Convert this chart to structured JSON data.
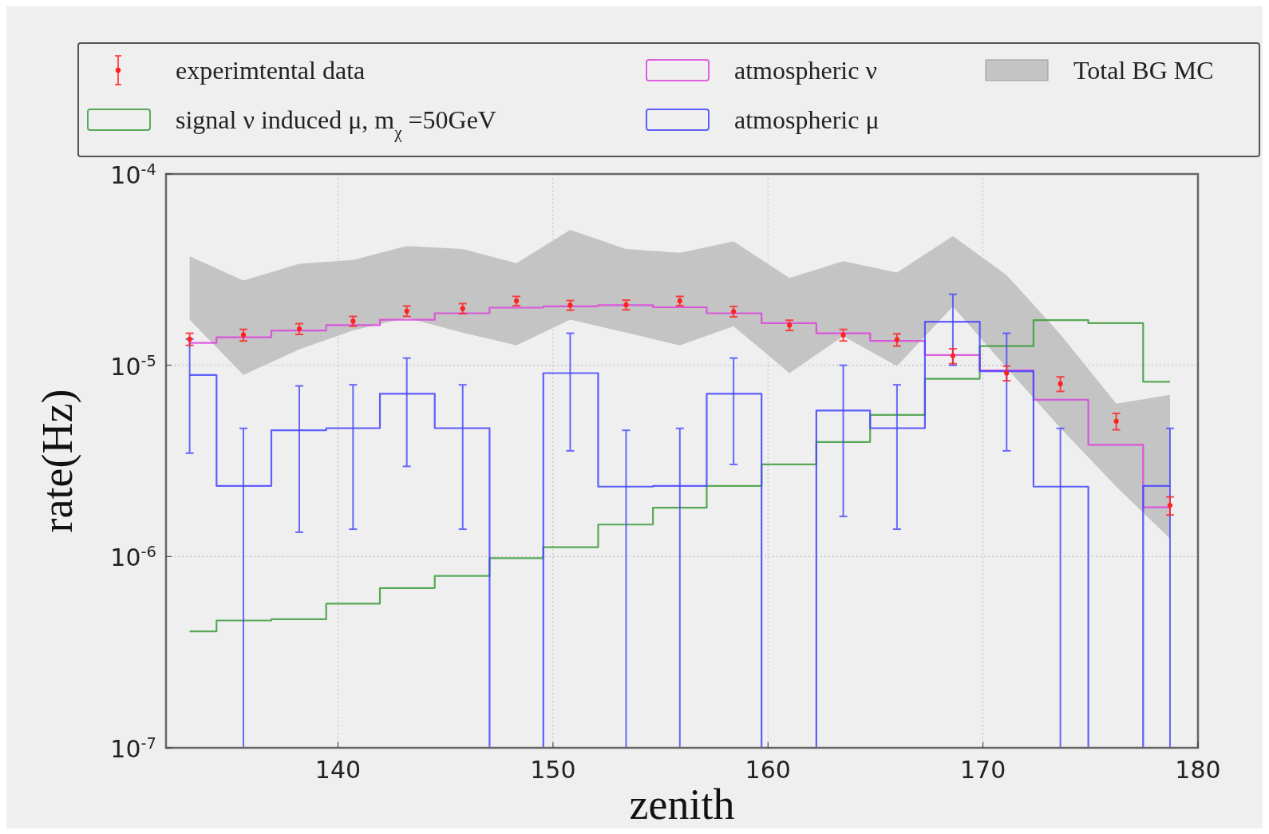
{
  "chart_data": {
    "type": "step",
    "xlabel": "zenith",
    "ylabel": "rate(Hz)",
    "log": "y",
    "grid": true,
    "legend": "top",
    "xlim": [
      132,
      180
    ],
    "xticks": [
      140,
      150,
      160,
      170,
      180
    ],
    "ylim": [
      1e-07,
      0.0001
    ],
    "yticks": [
      {
        "value": 1e-07,
        "label": "10$^{-7}$"
      },
      {
        "value": 1e-06,
        "label": "10$^{-6}$"
      },
      {
        "value": 1e-05,
        "label": "10$^{-5}$"
      },
      {
        "value": 0.0001,
        "label": "10$^{-4}$"
      }
    ],
    "x": [
      133.1,
      135.6,
      138.2,
      140.7,
      143.2,
      145.8,
      148.3,
      150.8,
      153.4,
      155.9,
      158.4,
      161.0,
      163.5,
      166.0,
      168.6,
      171.1,
      173.6,
      176.2,
      178.7
    ],
    "series": [
      {
        "name": "experimtental data",
        "type": "scatter",
        "marker": "circle",
        "color": "#ff2020",
        "values": [
          1.37e-05,
          1.44e-05,
          1.55e-05,
          1.7e-05,
          1.92e-05,
          1.98e-05,
          2.17e-05,
          2.06e-05,
          2.07e-05,
          2.17e-05,
          1.91e-05,
          1.62e-05,
          1.44e-05,
          1.36e-05,
          1.12e-05,
          9.1e-06,
          8e-06,
          5.1e-06,
          1.85e-06
        ],
        "errors": [
          1e-06,
          1e-06,
          1e-06,
          1e-06,
          1.2e-06,
          1.2e-06,
          1.2e-06,
          1.2e-06,
          1.2e-06,
          1.2e-06,
          1.2e-06,
          1e-06,
          1e-06,
          1e-06,
          1e-06,
          8e-07,
          7e-07,
          5e-07,
          2e-07
        ]
      },
      {
        "name": "signal ν induced μ, m$_{χ}$ =50GeV",
        "color": "#3c9c3c",
        "values": [
          4.06e-07,
          4.63e-07,
          4.7e-07,
          5.67e-07,
          6.84e-07,
          7.92e-07,
          9.8e-07,
          1.12e-06,
          1.47e-06,
          1.8e-06,
          2.34e-06,
          3.03e-06,
          3.97e-06,
          5.5e-06,
          8.5e-06,
          1.26e-05,
          1.72e-05,
          1.66e-05,
          8.2e-06
        ]
      },
      {
        "name": "atmospheric ν",
        "color": "#dd44dd",
        "values": [
          1.31e-05,
          1.4e-05,
          1.52e-05,
          1.62e-05,
          1.73e-05,
          1.87e-05,
          2e-05,
          2.03e-05,
          2.06e-05,
          2.01e-05,
          1.87e-05,
          1.66e-05,
          1.47e-05,
          1.34e-05,
          1.13e-05,
          9.4e-06,
          6.6e-06,
          3.84e-06,
          1.81e-06
        ]
      },
      {
        "name": "atmospheric μ",
        "color": "#4444ff",
        "values": [
          8.9e-06,
          2.34e-06,
          4.57e-06,
          4.69e-06,
          7.1e-06,
          4.69e-06,
          null,
          9.1e-06,
          2.32e-06,
          2.34e-06,
          7.1e-06,
          null,
          5.8e-06,
          4.69e-06,
          1.69e-05,
          9.3e-06,
          2.32e-06,
          null,
          2.34e-06
        ],
        "errors": [
          [
            3.47e-06,
            1.37e-05
          ],
          [
            1e-07,
            4.68e-06
          ],
          [
            1.34e-06,
            7.8e-06
          ],
          [
            1.39e-06,
            7.9e-06
          ],
          [
            2.96e-06,
            1.09e-05
          ],
          [
            1.39e-06,
            7.9e-06
          ],
          null,
          [
            3.57e-06,
            1.47e-05
          ],
          [
            1e-07,
            4.57e-06
          ],
          [
            1e-07,
            4.68e-06
          ],
          [
            3.03e-06,
            1.09e-05
          ],
          null,
          [
            1.62e-06,
            1e-05
          ],
          [
            1.39e-06,
            7.9e-06
          ],
          [
            1e-05,
            2.35e-05
          ],
          [
            3.57e-06,
            1.47e-05
          ],
          [
            1e-07,
            4.68e-06
          ],
          null,
          [
            1e-07,
            4.68e-06
          ]
        ]
      },
      {
        "name": "Total BG MC",
        "type": "area",
        "color": "#c4c4c4",
        "values": [
          null,
          null,
          null,
          null,
          null,
          null,
          null,
          null,
          null,
          null,
          null,
          null,
          null,
          null,
          null,
          null,
          null,
          null,
          null
        ],
        "lower": [
          1.73e-05,
          8.9e-06,
          1.21e-05,
          1.52e-05,
          1.77e-05,
          1.48e-05,
          1.27e-05,
          1.73e-05,
          1.48e-05,
          1.27e-05,
          1.6e-05,
          9.1e-06,
          1.42e-05,
          9.9e-06,
          2.03e-05,
          9.7e-06,
          4.7e-06,
          2.32e-06,
          1.24e-06
        ],
        "upper": [
          3.71e-05,
          2.77e-05,
          3.39e-05,
          3.55e-05,
          4.2e-05,
          4.05e-05,
          3.42e-05,
          5.1e-05,
          4.05e-05,
          3.87e-05,
          4.44e-05,
          2.86e-05,
          3.5e-05,
          3.05e-05,
          4.74e-05,
          2.96e-05,
          1.45e-05,
          6.3e-06,
          7e-06
        ]
      }
    ]
  }
}
